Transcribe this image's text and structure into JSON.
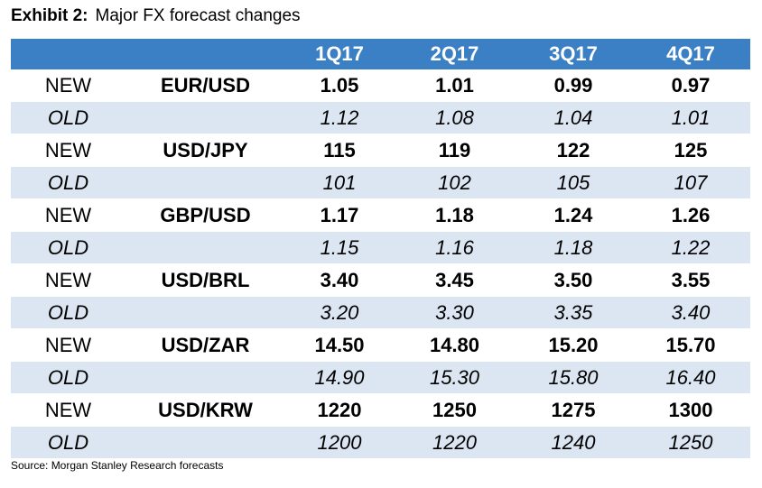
{
  "exhibit": {
    "label": "Exhibit 2:",
    "title": "Major FX forecast changes"
  },
  "table": {
    "columns": [
      "",
      "",
      "1Q17",
      "2Q17",
      "3Q17",
      "4Q17"
    ],
    "rows": [
      {
        "kind": "NEW",
        "pair": "EUR/USD",
        "values": [
          "1.05",
          "1.01",
          "0.99",
          "0.97"
        ]
      },
      {
        "kind": "OLD",
        "pair": "",
        "values": [
          "1.12",
          "1.08",
          "1.04",
          "1.01"
        ]
      },
      {
        "kind": "NEW",
        "pair": "USD/JPY",
        "values": [
          "115",
          "119",
          "122",
          "125"
        ]
      },
      {
        "kind": "OLD",
        "pair": "",
        "values": [
          "101",
          "102",
          "105",
          "107"
        ]
      },
      {
        "kind": "NEW",
        "pair": "GBP/USD",
        "values": [
          "1.17",
          "1.18",
          "1.24",
          "1.26"
        ]
      },
      {
        "kind": "OLD",
        "pair": "",
        "values": [
          "1.15",
          "1.16",
          "1.18",
          "1.22"
        ]
      },
      {
        "kind": "NEW",
        "pair": "USD/BRL",
        "values": [
          "3.40",
          "3.45",
          "3.50",
          "3.55"
        ]
      },
      {
        "kind": "OLD",
        "pair": "",
        "values": [
          "3.20",
          "3.30",
          "3.35",
          "3.40"
        ]
      },
      {
        "kind": "NEW",
        "pair": "USD/ZAR",
        "values": [
          "14.50",
          "14.80",
          "15.20",
          "15.70"
        ]
      },
      {
        "kind": "OLD",
        "pair": "",
        "values": [
          "14.90",
          "15.30",
          "15.80",
          "16.40"
        ]
      },
      {
        "kind": "NEW",
        "pair": "USD/KRW",
        "values": [
          "1220",
          "1250",
          "1275",
          "1300"
        ]
      },
      {
        "kind": "OLD",
        "pair": "",
        "values": [
          "1200",
          "1220",
          "1240",
          "1250"
        ]
      }
    ]
  },
  "source": "Source: Morgan Stanley Research forecasts",
  "colors": {
    "header_bg": "#3b7fc4",
    "header_text": "#ffffff",
    "old_row_bg": "#dce6f2",
    "new_row_bg": "#ffffff"
  }
}
